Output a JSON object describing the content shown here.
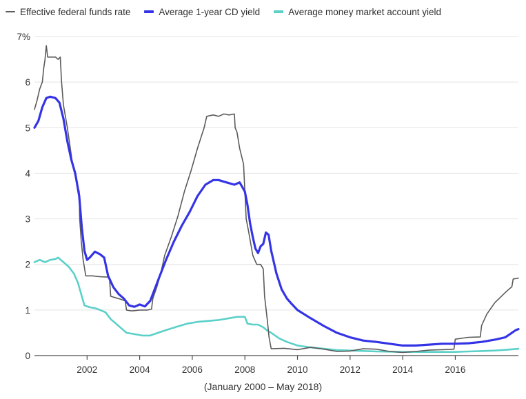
{
  "legend": {
    "items": [
      {
        "label": "Effective federal funds rate",
        "color": "#5a5a5a"
      },
      {
        "label": "Average 1-year CD yield",
        "color": "#3434e6"
      },
      {
        "label": "Average money market account yield",
        "color": "#5bd0c8"
      }
    ]
  },
  "caption": "(January 2000 – May 2018)",
  "chart_data": {
    "type": "line",
    "title": "",
    "xlabel": "",
    "ylabel": "",
    "x_unit": "year",
    "xlim": [
      2000.0,
      2018.4
    ],
    "ylim": [
      0,
      7
    ],
    "grid": "horizontal",
    "legend_position": "top",
    "x_ticks": [
      {
        "value": 2002,
        "label": "2002"
      },
      {
        "value": 2004,
        "label": "2004"
      },
      {
        "value": 2006,
        "label": "2006"
      },
      {
        "value": 2008,
        "label": "2008"
      },
      {
        "value": 2010,
        "label": "2010"
      },
      {
        "value": 2012,
        "label": "2012"
      },
      {
        "value": 2014,
        "label": "2014"
      },
      {
        "value": 2016,
        "label": "2016"
      }
    ],
    "y_ticks": [
      {
        "value": 0,
        "label": "0"
      },
      {
        "value": 1,
        "label": "1"
      },
      {
        "value": 2,
        "label": "2"
      },
      {
        "value": 3,
        "label": "3"
      },
      {
        "value": 4,
        "label": "4"
      },
      {
        "value": 5,
        "label": "5"
      },
      {
        "value": 6,
        "label": "6"
      },
      {
        "value": 7,
        "label": "7%"
      }
    ],
    "series": [
      {
        "name": "Effective federal funds rate",
        "color": "#5a5a5a",
        "points": [
          [
            2000.0,
            5.4
          ],
          [
            2000.1,
            5.6
          ],
          [
            2000.2,
            5.85
          ],
          [
            2000.3,
            6.0
          ],
          [
            2000.35,
            6.3
          ],
          [
            2000.4,
            6.5
          ],
          [
            2000.45,
            6.8
          ],
          [
            2000.5,
            6.55
          ],
          [
            2000.6,
            6.55
          ],
          [
            2000.8,
            6.55
          ],
          [
            2000.9,
            6.5
          ],
          [
            2000.98,
            6.55
          ],
          [
            2001.03,
            6.0
          ],
          [
            2001.1,
            5.5
          ],
          [
            2001.25,
            5.0
          ],
          [
            2001.35,
            4.6
          ],
          [
            2001.45,
            4.2
          ],
          [
            2001.6,
            3.8
          ],
          [
            2001.7,
            3.6
          ],
          [
            2001.72,
            3.0
          ],
          [
            2001.78,
            2.5
          ],
          [
            2001.85,
            2.1
          ],
          [
            2001.95,
            1.75
          ],
          [
            2002.2,
            1.75
          ],
          [
            2002.5,
            1.73
          ],
          [
            2002.85,
            1.72
          ],
          [
            2002.9,
            1.3
          ],
          [
            2003.2,
            1.25
          ],
          [
            2003.45,
            1.2
          ],
          [
            2003.5,
            1.0
          ],
          [
            2003.7,
            0.98
          ],
          [
            2004.0,
            1.0
          ],
          [
            2004.3,
            1.0
          ],
          [
            2004.45,
            1.02
          ],
          [
            2004.5,
            1.25
          ],
          [
            2004.65,
            1.5
          ],
          [
            2004.8,
            1.8
          ],
          [
            2004.95,
            2.2
          ],
          [
            2005.2,
            2.6
          ],
          [
            2005.45,
            3.05
          ],
          [
            2005.7,
            3.6
          ],
          [
            2005.95,
            4.05
          ],
          [
            2006.2,
            4.55
          ],
          [
            2006.45,
            5.0
          ],
          [
            2006.55,
            5.25
          ],
          [
            2006.8,
            5.28
          ],
          [
            2007.0,
            5.25
          ],
          [
            2007.2,
            5.3
          ],
          [
            2007.4,
            5.28
          ],
          [
            2007.6,
            5.3
          ],
          [
            2007.63,
            5.0
          ],
          [
            2007.7,
            4.9
          ],
          [
            2007.8,
            4.55
          ],
          [
            2007.95,
            4.2
          ],
          [
            2008.05,
            3.0
          ],
          [
            2008.15,
            2.7
          ],
          [
            2008.3,
            2.2
          ],
          [
            2008.45,
            2.0
          ],
          [
            2008.6,
            2.0
          ],
          [
            2008.7,
            1.9
          ],
          [
            2008.75,
            1.3
          ],
          [
            2008.85,
            0.8
          ],
          [
            2008.92,
            0.4
          ],
          [
            2009.0,
            0.15
          ],
          [
            2009.5,
            0.16
          ],
          [
            2010.0,
            0.13
          ],
          [
            2010.5,
            0.18
          ],
          [
            2011.0,
            0.14
          ],
          [
            2011.5,
            0.09
          ],
          [
            2012.0,
            0.1
          ],
          [
            2012.5,
            0.15
          ],
          [
            2013.0,
            0.14
          ],
          [
            2013.5,
            0.09
          ],
          [
            2014.0,
            0.07
          ],
          [
            2014.5,
            0.09
          ],
          [
            2015.0,
            0.12
          ],
          [
            2015.5,
            0.13
          ],
          [
            2015.95,
            0.14
          ],
          [
            2016.0,
            0.36
          ],
          [
            2016.5,
            0.4
          ],
          [
            2016.95,
            0.41
          ],
          [
            2017.0,
            0.66
          ],
          [
            2017.2,
            0.91
          ],
          [
            2017.5,
            1.16
          ],
          [
            2017.95,
            1.41
          ],
          [
            2018.15,
            1.51
          ],
          [
            2018.2,
            1.68
          ],
          [
            2018.4,
            1.7
          ]
        ]
      },
      {
        "name": "Average 1-year CD yield",
        "color": "#3434e6",
        "points": [
          [
            2000.0,
            5.0
          ],
          [
            2000.15,
            5.15
          ],
          [
            2000.3,
            5.45
          ],
          [
            2000.45,
            5.65
          ],
          [
            2000.6,
            5.68
          ],
          [
            2000.8,
            5.65
          ],
          [
            2000.95,
            5.55
          ],
          [
            2001.1,
            5.2
          ],
          [
            2001.25,
            4.7
          ],
          [
            2001.4,
            4.3
          ],
          [
            2001.55,
            4.0
          ],
          [
            2001.7,
            3.5
          ],
          [
            2001.8,
            2.8
          ],
          [
            2001.9,
            2.3
          ],
          [
            2002.0,
            2.1
          ],
          [
            2002.1,
            2.15
          ],
          [
            2002.3,
            2.28
          ],
          [
            2002.5,
            2.22
          ],
          [
            2002.65,
            2.15
          ],
          [
            2002.8,
            1.75
          ],
          [
            2003.0,
            1.5
          ],
          [
            2003.2,
            1.35
          ],
          [
            2003.4,
            1.25
          ],
          [
            2003.6,
            1.1
          ],
          [
            2003.8,
            1.07
          ],
          [
            2004.0,
            1.12
          ],
          [
            2004.2,
            1.08
          ],
          [
            2004.4,
            1.2
          ],
          [
            2004.6,
            1.5
          ],
          [
            2004.8,
            1.8
          ],
          [
            2005.0,
            2.1
          ],
          [
            2005.3,
            2.5
          ],
          [
            2005.6,
            2.85
          ],
          [
            2005.9,
            3.15
          ],
          [
            2006.2,
            3.5
          ],
          [
            2006.5,
            3.75
          ],
          [
            2006.8,
            3.85
          ],
          [
            2007.0,
            3.85
          ],
          [
            2007.3,
            3.8
          ],
          [
            2007.6,
            3.75
          ],
          [
            2007.8,
            3.8
          ],
          [
            2008.0,
            3.6
          ],
          [
            2008.1,
            3.3
          ],
          [
            2008.2,
            2.9
          ],
          [
            2008.3,
            2.6
          ],
          [
            2008.4,
            2.35
          ],
          [
            2008.5,
            2.25
          ],
          [
            2008.6,
            2.4
          ],
          [
            2008.7,
            2.45
          ],
          [
            2008.8,
            2.7
          ],
          [
            2008.9,
            2.65
          ],
          [
            2009.0,
            2.3
          ],
          [
            2009.2,
            1.8
          ],
          [
            2009.4,
            1.45
          ],
          [
            2009.6,
            1.25
          ],
          [
            2009.8,
            1.12
          ],
          [
            2010.0,
            1.0
          ],
          [
            2010.5,
            0.82
          ],
          [
            2011.0,
            0.65
          ],
          [
            2011.5,
            0.5
          ],
          [
            2012.0,
            0.4
          ],
          [
            2012.5,
            0.33
          ],
          [
            2013.0,
            0.3
          ],
          [
            2013.5,
            0.26
          ],
          [
            2014.0,
            0.22
          ],
          [
            2014.5,
            0.22
          ],
          [
            2015.0,
            0.24
          ],
          [
            2015.5,
            0.26
          ],
          [
            2016.0,
            0.26
          ],
          [
            2016.5,
            0.27
          ],
          [
            2017.0,
            0.3
          ],
          [
            2017.5,
            0.35
          ],
          [
            2017.9,
            0.4
          ],
          [
            2018.1,
            0.48
          ],
          [
            2018.3,
            0.56
          ],
          [
            2018.4,
            0.58
          ]
        ]
      },
      {
        "name": "Average money market account yield",
        "color": "#5bd0c8",
        "points": [
          [
            2000.0,
            2.05
          ],
          [
            2000.2,
            2.1
          ],
          [
            2000.4,
            2.05
          ],
          [
            2000.6,
            2.1
          ],
          [
            2000.8,
            2.12
          ],
          [
            2000.9,
            2.15
          ],
          [
            2001.0,
            2.1
          ],
          [
            2001.1,
            2.05
          ],
          [
            2001.3,
            1.95
          ],
          [
            2001.5,
            1.8
          ],
          [
            2001.65,
            1.6
          ],
          [
            2001.8,
            1.3
          ],
          [
            2001.9,
            1.1
          ],
          [
            2002.1,
            1.06
          ],
          [
            2002.3,
            1.04
          ],
          [
            2002.5,
            1.0
          ],
          [
            2002.7,
            0.95
          ],
          [
            2002.9,
            0.8
          ],
          [
            2003.1,
            0.7
          ],
          [
            2003.3,
            0.6
          ],
          [
            2003.5,
            0.5
          ],
          [
            2003.8,
            0.47
          ],
          [
            2004.1,
            0.44
          ],
          [
            2004.4,
            0.44
          ],
          [
            2004.7,
            0.5
          ],
          [
            2005.0,
            0.56
          ],
          [
            2005.4,
            0.63
          ],
          [
            2005.8,
            0.7
          ],
          [
            2006.2,
            0.74
          ],
          [
            2006.6,
            0.76
          ],
          [
            2007.0,
            0.78
          ],
          [
            2007.4,
            0.82
          ],
          [
            2007.7,
            0.85
          ],
          [
            2008.0,
            0.85
          ],
          [
            2008.1,
            0.7
          ],
          [
            2008.3,
            0.68
          ],
          [
            2008.5,
            0.68
          ],
          [
            2008.7,
            0.62
          ],
          [
            2008.85,
            0.55
          ],
          [
            2009.0,
            0.5
          ],
          [
            2009.3,
            0.38
          ],
          [
            2009.6,
            0.3
          ],
          [
            2010.0,
            0.22
          ],
          [
            2010.5,
            0.18
          ],
          [
            2011.0,
            0.15
          ],
          [
            2011.5,
            0.12
          ],
          [
            2012.0,
            0.11
          ],
          [
            2013.0,
            0.09
          ],
          [
            2014.0,
            0.08
          ],
          [
            2015.0,
            0.08
          ],
          [
            2016.0,
            0.08
          ],
          [
            2016.5,
            0.09
          ],
          [
            2017.0,
            0.1
          ],
          [
            2017.5,
            0.11
          ],
          [
            2018.0,
            0.13
          ],
          [
            2018.4,
            0.15
          ]
        ]
      }
    ]
  }
}
